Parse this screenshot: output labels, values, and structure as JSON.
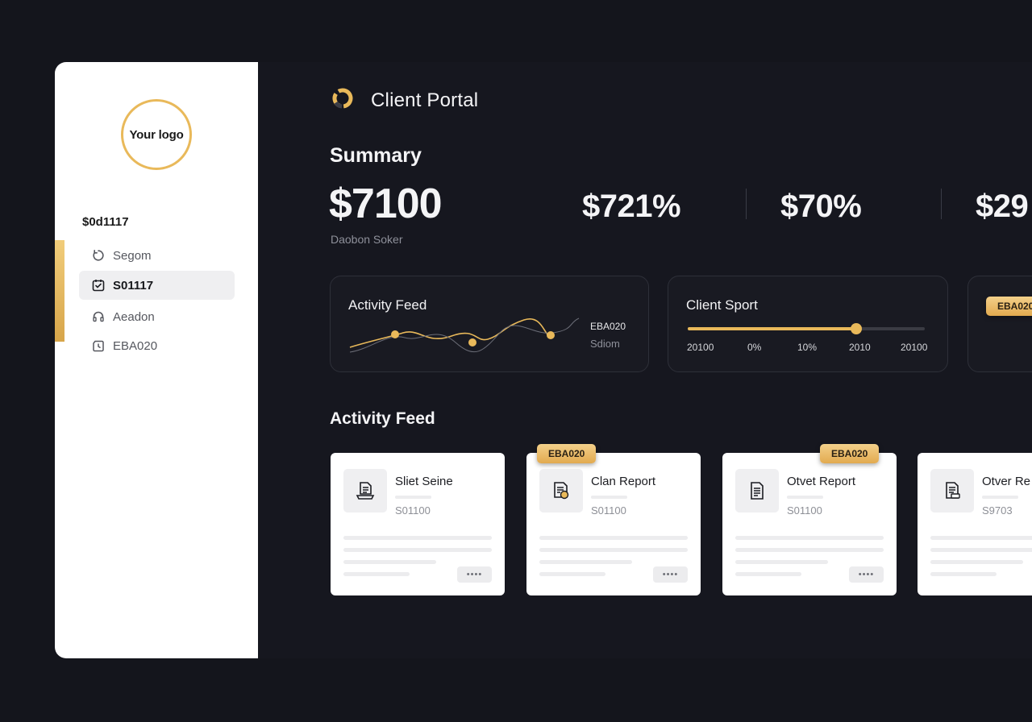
{
  "sidebar": {
    "logo_text": "Your logo",
    "heading": "$0d1117",
    "items": [
      {
        "label": "Segom",
        "icon": "circle-refresh-icon",
        "active": false
      },
      {
        "label": "S01117",
        "icon": "check-square-icon",
        "active": true
      },
      {
        "label": "Aeadon",
        "icon": "headset-icon",
        "active": false
      },
      {
        "label": "EBA020",
        "icon": "clock-icon",
        "active": false
      }
    ]
  },
  "header": {
    "title": "Client Portal",
    "icon": "ring-logo-icon"
  },
  "summary": {
    "title": "Summary",
    "primary_value": "$7100",
    "primary_caption": "Daobon Soker",
    "stats": [
      "$721%",
      "$70%",
      "$29"
    ]
  },
  "panels": {
    "activity": {
      "title": "Activity Feed",
      "legend_primary": "EBA020",
      "legend_secondary": "Sdiom"
    },
    "sport": {
      "title": "Client Sport",
      "slider_fraction": 0.71,
      "ticks": [
        "20100",
        "0%",
        "10%",
        "2010",
        "20100"
      ]
    },
    "third": {
      "chip": "EBA020"
    }
  },
  "feed": {
    "title": "Activity Feed",
    "cards": [
      {
        "title": "Sliet Seine",
        "sub": "S01100",
        "icon": "document-tray-icon",
        "chip": ""
      },
      {
        "title": "Clan Report",
        "sub": "S01100",
        "icon": "document-coin-icon",
        "chip": "EBA020"
      },
      {
        "title": "Otvet Report",
        "sub": "S01100",
        "icon": "document-icon",
        "chip": "EBA020"
      },
      {
        "title": "Otver Re",
        "sub": "S9703",
        "icon": "document-card-icon",
        "chip": ""
      }
    ],
    "more_label": "••••"
  },
  "colors": {
    "accent": "#e9b95a",
    "background": "#14151c",
    "panel_border": "#2e3039"
  }
}
